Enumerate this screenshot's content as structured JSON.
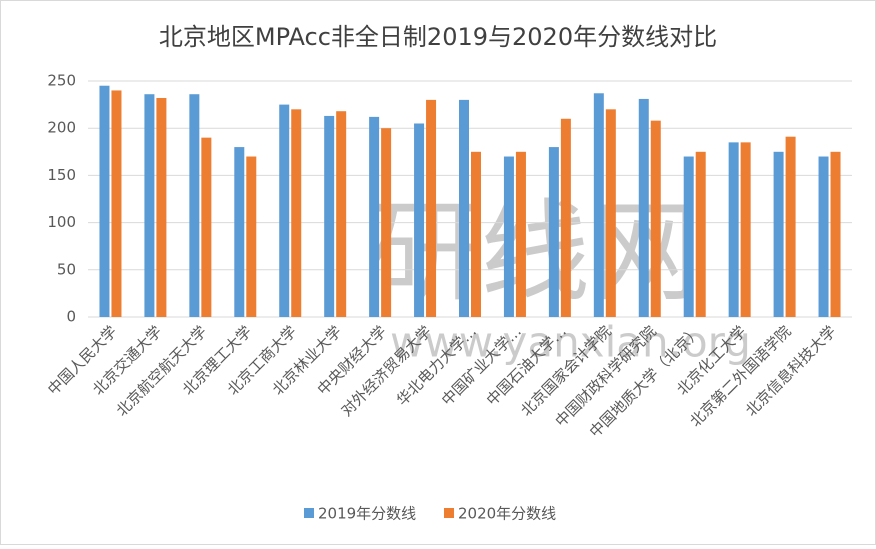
{
  "chart_data": {
    "type": "bar",
    "title": "北京地区MPAcc非全日制2019与2020年分数线对比",
    "categories": [
      "中国人民大学",
      "北京交通大学",
      "北京航空航天大学",
      "北京理工大学",
      "北京工商大学",
      "北京林业大学",
      "中央财经大学",
      "对外经济贸易大学",
      "华北电力大学…",
      "中国矿业大学…",
      "中国石油大学…",
      "北京国家会计学院",
      "中国财政科学研究院",
      "中国地质大学（北京）",
      "北京化工大学",
      "北京第二外国语学院",
      "北京信息科技大学"
    ],
    "series": [
      {
        "name": "2019年分数线",
        "color": "#5b9bd5",
        "values": [
          245,
          236,
          236,
          180,
          225,
          213,
          212,
          205,
          230,
          170,
          180,
          237,
          231,
          170,
          185,
          175,
          170
        ]
      },
      {
        "name": "2020年分数线",
        "color": "#ed7d31",
        "values": [
          240,
          232,
          190,
          170,
          220,
          218,
          200,
          230,
          175,
          175,
          210,
          220,
          208,
          175,
          185,
          191,
          175
        ]
      }
    ],
    "ylim": [
      0,
      250
    ],
    "yticks": [
      0,
      50,
      100,
      150,
      200,
      250
    ],
    "grid": true,
    "legend": "bottom"
  }
}
